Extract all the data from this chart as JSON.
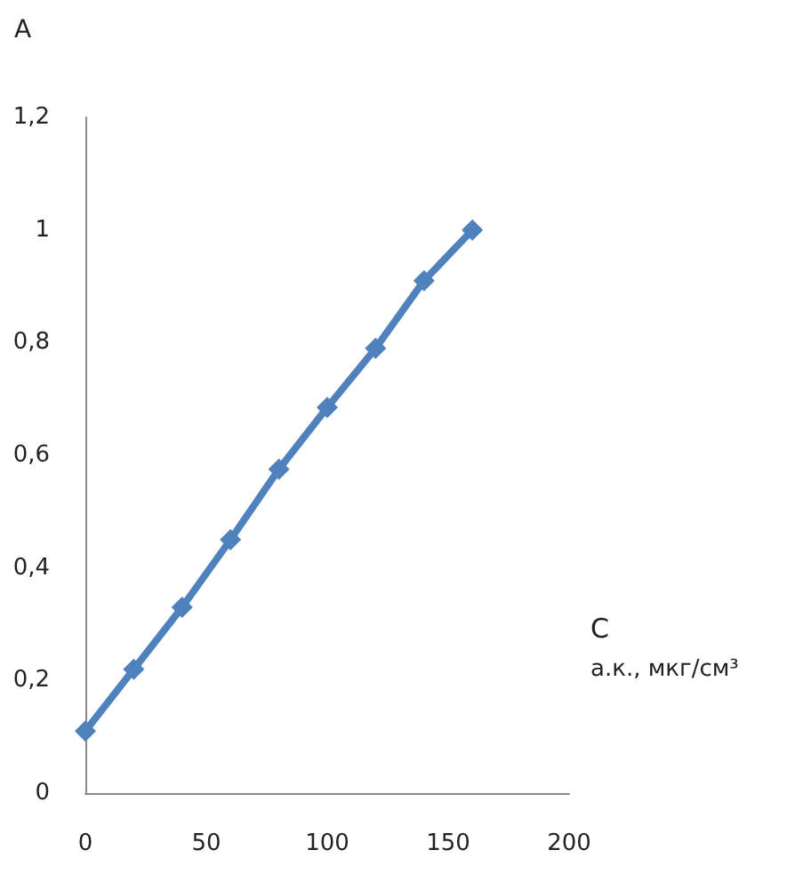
{
  "chart_data": {
    "type": "line",
    "xlabel": "C\nа.к., мкг/см³",
    "ylabel": "A",
    "x": [
      0,
      20,
      40,
      60,
      80,
      100,
      120,
      140,
      160
    ],
    "series": [
      {
        "color": "#4f81bd",
        "values": [
          0.11,
          0.22,
          0.33,
          0.45,
          0.575,
          0.685,
          0.79,
          0.91,
          1.0
        ]
      }
    ],
    "xlim": [
      0,
      200
    ],
    "xticks": [
      0,
      50,
      100,
      150,
      200
    ],
    "ylim": [
      0,
      1.2
    ],
    "yticks": [
      0,
      {
        "value": 0.2,
        "label": "0,2"
      },
      {
        "value": 0.4,
        "label": "0,4"
      },
      {
        "value": 0.6,
        "label": "0,6"
      },
      {
        "value": 0.8,
        "label": "0,8"
      },
      1,
      {
        "value": 1.2,
        "label": "1,2"
      }
    ],
    "grid": false,
    "marker": "diamond",
    "line_style": "solid"
  }
}
